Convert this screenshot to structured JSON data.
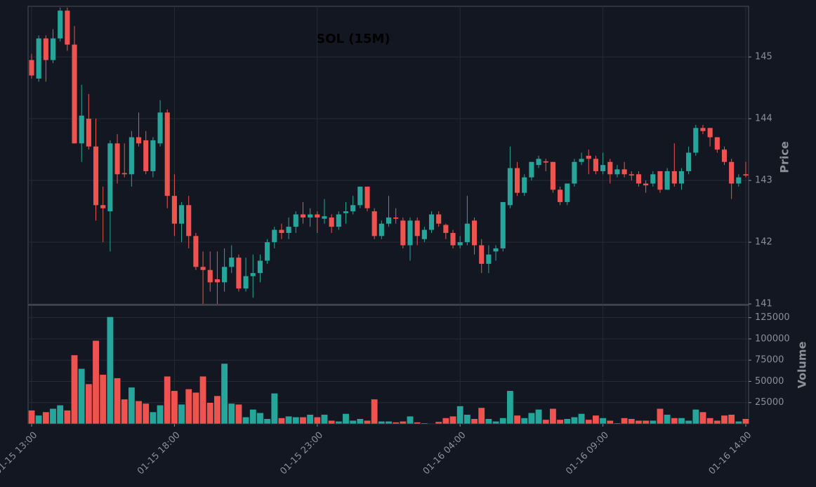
{
  "chart_data": {
    "type": "candlestick",
    "title": "SOL (15M)",
    "ylabel": "Price",
    "y2label": "Volume",
    "up_color": "#26a69a",
    "down_color": "#ef5350",
    "grid": true,
    "x": [
      "01-15 13:00",
      "01-15 13:15",
      "01-15 13:30",
      "01-15 13:45",
      "01-15 14:00",
      "01-15 14:15",
      "01-15 14:30",
      "01-15 14:45",
      "01-15 15:00",
      "01-15 15:15",
      "01-15 15:30",
      "01-15 15:45",
      "01-15 16:00",
      "01-15 16:15",
      "01-15 16:30",
      "01-15 16:45",
      "01-15 17:00",
      "01-15 17:15",
      "01-15 17:30",
      "01-15 17:45",
      "01-15 18:00",
      "01-15 18:15",
      "01-15 18:30",
      "01-15 18:45",
      "01-15 19:00",
      "01-15 19:15",
      "01-15 19:30",
      "01-15 19:45",
      "01-15 20:00",
      "01-15 20:15",
      "01-15 20:30",
      "01-15 20:45",
      "01-15 21:00",
      "01-15 21:15",
      "01-15 21:30",
      "01-15 21:45",
      "01-15 22:00",
      "01-15 22:15",
      "01-15 22:30",
      "01-15 22:45",
      "01-15 23:00",
      "01-15 23:15",
      "01-15 23:30",
      "01-15 23:45",
      "01-16 00:00",
      "01-16 00:15",
      "01-16 00:30",
      "01-16 00:45",
      "01-16 01:00",
      "01-16 01:15",
      "01-16 01:30",
      "01-16 01:45",
      "01-16 02:00",
      "01-16 02:15",
      "01-16 02:30",
      "01-16 02:45",
      "01-16 03:00",
      "01-16 03:15",
      "01-16 03:30",
      "01-16 03:45",
      "01-16 04:00",
      "01-16 04:15",
      "01-16 04:30",
      "01-16 04:45",
      "01-16 05:00",
      "01-16 05:15",
      "01-16 05:30",
      "01-16 05:45",
      "01-16 06:00",
      "01-16 06:15",
      "01-16 06:30",
      "01-16 06:45",
      "01-16 07:00",
      "01-16 07:15",
      "01-16 07:30",
      "01-16 07:45",
      "01-16 08:00",
      "01-16 08:15",
      "01-16 08:30",
      "01-16 08:45",
      "01-16 09:00",
      "01-16 09:15",
      "01-16 09:30",
      "01-16 09:45",
      "01-16 10:00",
      "01-16 10:15",
      "01-16 10:30",
      "01-16 10:45",
      "01-16 11:00",
      "01-16 11:15",
      "01-16 11:30",
      "01-16 11:45",
      "01-16 12:00",
      "01-16 12:15",
      "01-16 12:30",
      "01-16 12:45",
      "01-16 13:00",
      "01-16 13:15",
      "01-16 13:30",
      "01-16 13:45",
      "01-16 14:00"
    ],
    "xticks": [
      "01-15 13:00",
      "01-15 18:00",
      "01-15 23:00",
      "01-16 04:00",
      "01-16 09:00",
      "01-16 14:00"
    ],
    "open": [
      144.95,
      144.65,
      145.3,
      144.95,
      145.3,
      145.75,
      145.2,
      143.6,
      144.0,
      143.55,
      142.6,
      142.5,
      143.6,
      143.12,
      143.1,
      143.7,
      143.65,
      143.15,
      143.6,
      144.1,
      142.75,
      142.3,
      142.6,
      142.1,
      141.6,
      141.55,
      141.4,
      141.35,
      141.6,
      141.75,
      141.25,
      141.45,
      141.5,
      141.7,
      142.0,
      142.2,
      142.15,
      142.25,
      142.45,
      142.4,
      142.45,
      142.38,
      142.4,
      142.25,
      142.47,
      142.5,
      142.6,
      142.9,
      142.5,
      142.1,
      142.3,
      142.4,
      142.35,
      141.95,
      142.35,
      142.05,
      142.2,
      142.45,
      142.28,
      142.15,
      141.95,
      142.0,
      142.35,
      141.95,
      141.65,
      141.85,
      141.9,
      142.6,
      143.2,
      142.8,
      143.05,
      143.25,
      143.31,
      143.3,
      142.85,
      142.65,
      142.95,
      143.3,
      143.4,
      143.35,
      143.15,
      143.3,
      143.1,
      143.18,
      143.1,
      143.1,
      142.95,
      142.95,
      143.15,
      142.85,
      143.15,
      142.95,
      143.15,
      143.45,
      143.85,
      143.85,
      143.7,
      143.5,
      143.3,
      142.95,
      143.1
    ],
    "high": [
      145.05,
      145.35,
      145.35,
      145.45,
      145.8,
      145.8,
      145.5,
      144.55,
      144.4,
      144.0,
      142.9,
      143.65,
      143.75,
      143.6,
      143.8,
      144.1,
      143.8,
      143.7,
      144.3,
      144.15,
      143.1,
      142.65,
      142.75,
      142.15,
      141.85,
      141.85,
      141.85,
      141.9,
      141.95,
      141.8,
      141.75,
      141.8,
      141.8,
      142.05,
      142.25,
      142.3,
      142.4,
      142.5,
      142.65,
      142.55,
      142.5,
      142.7,
      142.45,
      142.5,
      142.65,
      142.75,
      142.9,
      142.9,
      142.55,
      142.35,
      142.75,
      142.55,
      142.4,
      142.4,
      142.4,
      142.25,
      142.5,
      142.5,
      142.3,
      142.2,
      142.1,
      142.75,
      142.4,
      142.05,
      141.95,
      141.95,
      142.65,
      143.55,
      143.3,
      143.1,
      143.3,
      143.4,
      143.35,
      143.3,
      142.9,
      142.95,
      143.35,
      143.45,
      143.5,
      143.4,
      143.45,
      143.35,
      143.25,
      143.3,
      143.15,
      143.15,
      143.0,
      143.15,
      143.15,
      143.2,
      143.6,
      143.2,
      143.55,
      143.9,
      143.9,
      143.85,
      143.7,
      143.55,
      143.35,
      143.1,
      143.3
    ],
    "low": [
      144.65,
      144.6,
      144.6,
      144.9,
      145.25,
      145.1,
      143.6,
      143.3,
      143.5,
      142.35,
      142.0,
      141.85,
      142.95,
      143.05,
      142.9,
      143.55,
      143.1,
      143.05,
      143.55,
      142.55,
      142.1,
      142.0,
      141.9,
      141.55,
      141.0,
      141.2,
      141.0,
      141.2,
      141.5,
      141.2,
      141.2,
      141.1,
      141.35,
      141.65,
      141.9,
      142.05,
      142.05,
      142.15,
      142.3,
      142.25,
      142.15,
      142.3,
      142.15,
      142.2,
      142.3,
      142.45,
      142.55,
      142.5,
      142.05,
      142.05,
      142.25,
      142.3,
      141.9,
      141.7,
      141.95,
      142.0,
      142.15,
      142.25,
      142.05,
      141.9,
      141.9,
      141.95,
      141.8,
      141.5,
      141.5,
      141.7,
      141.85,
      142.55,
      142.75,
      142.75,
      143.0,
      143.2,
      143.15,
      142.8,
      142.6,
      142.6,
      142.9,
      143.25,
      143.1,
      143.1,
      143.1,
      142.95,
      143.05,
      143.05,
      143.0,
      142.9,
      142.8,
      142.9,
      142.8,
      142.85,
      142.9,
      142.85,
      143.1,
      143.4,
      143.75,
      143.55,
      143.45,
      143.25,
      142.7,
      142.9,
      143.05
    ],
    "close": [
      144.7,
      145.3,
      144.95,
      145.3,
      145.75,
      145.2,
      143.6,
      144.05,
      143.55,
      142.6,
      142.55,
      143.6,
      143.1,
      143.1,
      143.7,
      143.6,
      143.15,
      143.65,
      144.1,
      142.75,
      142.3,
      142.6,
      142.1,
      141.6,
      141.55,
      141.35,
      141.35,
      141.6,
      141.75,
      141.25,
      141.45,
      141.5,
      141.7,
      142.0,
      142.2,
      142.15,
      142.25,
      142.45,
      142.4,
      142.45,
      142.4,
      142.42,
      142.25,
      142.45,
      142.5,
      142.6,
      142.9,
      142.55,
      142.1,
      142.3,
      142.4,
      142.38,
      141.95,
      142.35,
      142.1,
      142.2,
      142.45,
      142.3,
      142.15,
      141.95,
      142.0,
      142.3,
      141.95,
      141.65,
      141.8,
      141.9,
      142.65,
      143.2,
      142.8,
      143.05,
      143.3,
      143.35,
      143.29,
      142.85,
      142.65,
      142.95,
      143.3,
      143.35,
      143.35,
      143.15,
      143.25,
      143.1,
      143.18,
      143.1,
      143.08,
      142.95,
      142.92,
      143.1,
      142.85,
      143.15,
      142.95,
      143.15,
      143.45,
      143.85,
      143.8,
      143.7,
      143.5,
      143.3,
      142.95,
      143.05,
      143.08
    ],
    "volume": [
      16000,
      10000,
      14000,
      18000,
      22000,
      16000,
      81000,
      65000,
      47000,
      98000,
      58000,
      126000,
      54000,
      29000,
      43000,
      27000,
      24000,
      14000,
      22000,
      56000,
      39000,
      23000,
      41000,
      37000,
      56000,
      25000,
      33000,
      71000,
      24000,
      23000,
      8000,
      17000,
      13000,
      6000,
      36000,
      7000,
      9000,
      8000,
      8000,
      11000,
      8000,
      11000,
      4000,
      3000,
      12000,
      4000,
      6000,
      4000,
      29000,
      3000,
      3000,
      2000,
      3000,
      9000,
      2000,
      1000,
      500,
      2500,
      7000,
      9000,
      21000,
      11000,
      6000,
      19000,
      6000,
      3000,
      7000,
      39000,
      10000,
      7000,
      13000,
      17000,
      5000,
      18000,
      5000,
      6000,
      8000,
      12000,
      5000,
      10000,
      7000,
      4000,
      1000,
      7000,
      6000,
      4000,
      4000,
      4000,
      18000,
      11000,
      7000,
      7000,
      4000,
      17000,
      14000,
      7000,
      4000,
      10000,
      11000,
      3000,
      6000
    ],
    "ylim": [
      140.99,
      145.82
    ],
    "yticks": [
      141,
      142,
      143,
      144,
      145
    ],
    "y2lim": [
      0,
      139600
    ],
    "y2ticks": [
      25000,
      50000,
      75000,
      100000,
      125000
    ]
  }
}
